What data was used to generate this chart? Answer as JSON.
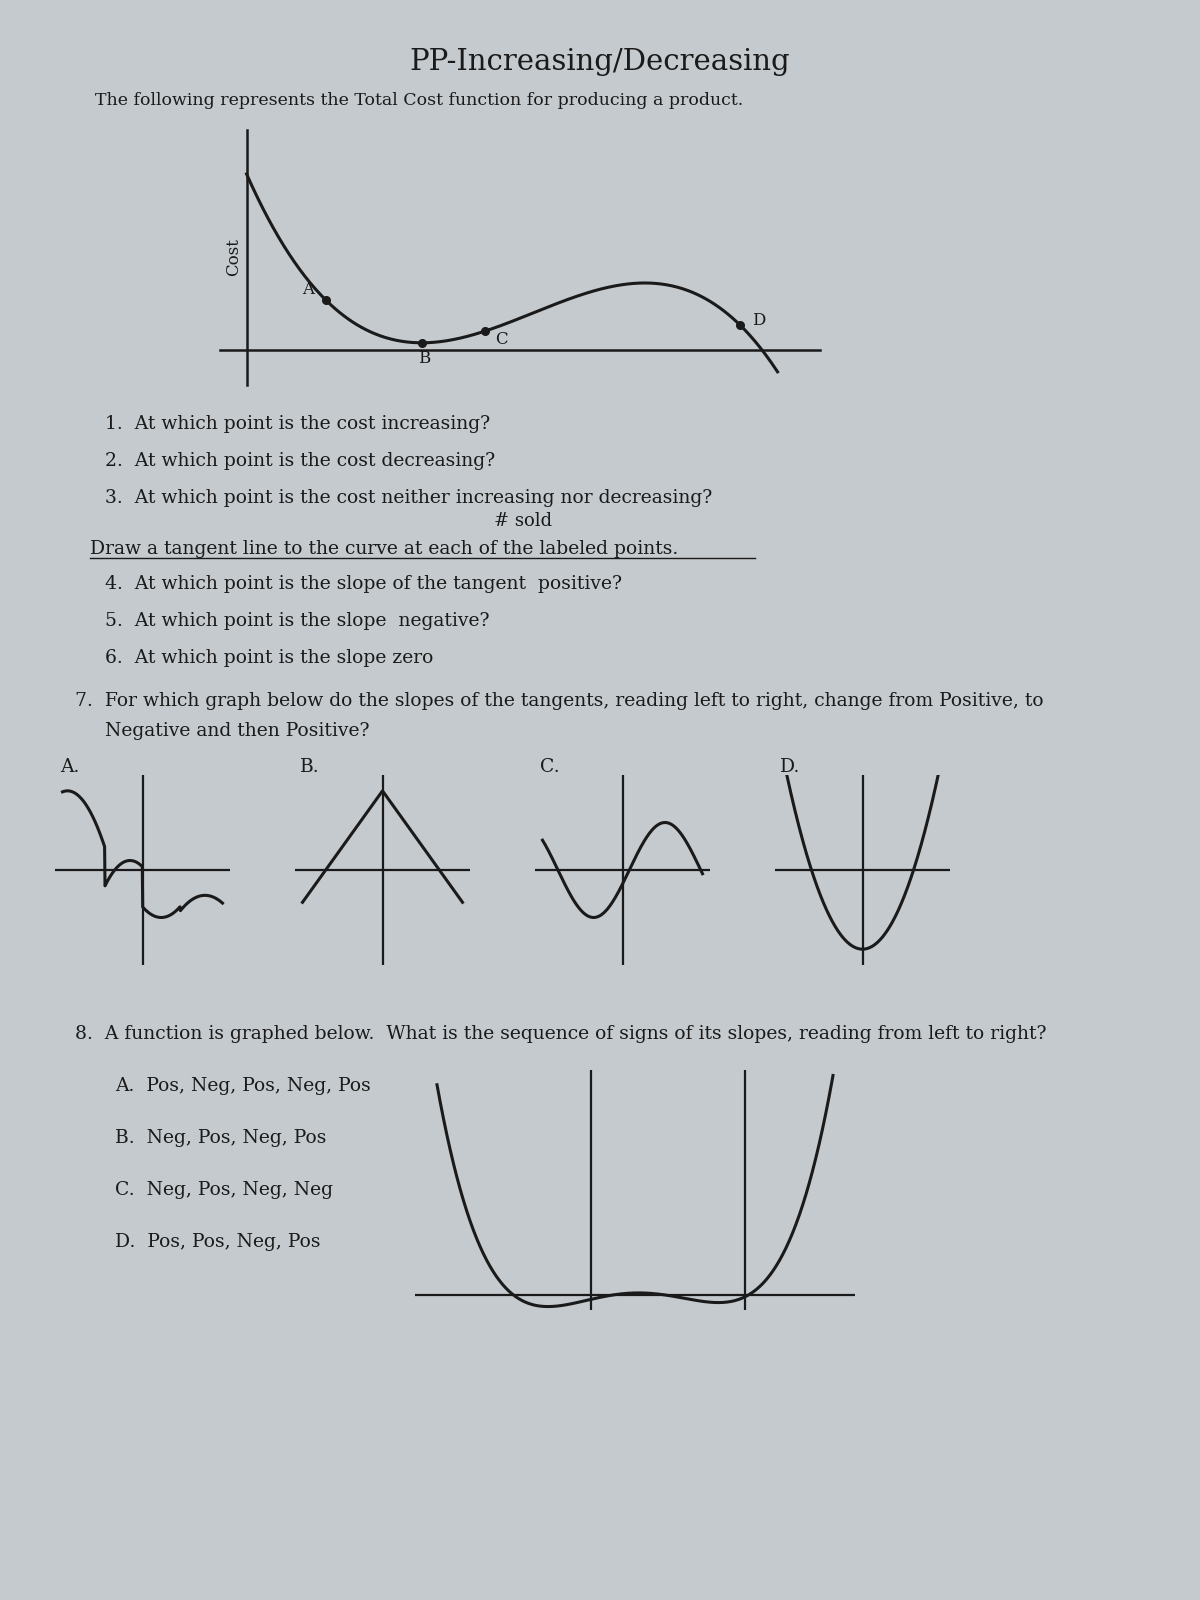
{
  "title": "PP-Increasing/Decreasing",
  "subtitle": "The following represents the Total Cost function for producing a product.",
  "bg_color": "#c5cace",
  "text_color": "#1a1a1a",
  "curve_color": "#1a1a1a",
  "axis_color": "#1a1a1a",
  "q1": "1.  At which point is the cost increasing?",
  "q2": "2.  At which point is the cost decreasing?",
  "q3": "3.  At which point is the cost neither increasing nor decreasing?",
  "draw_tangent": "Draw a tangent line to the curve at each of the labeled points.",
  "q4": "4.  At which point is the slope of the tangent  positive?",
  "q5": "5.  At which point is the slope  negative?",
  "q6": "6.  At which point is the slope zero",
  "q7": "7.  For which graph below do the slopes of the tangents, reading left to right, change from Positive, to",
  "q7b": "     Negative and then Positive?",
  "q8": "8.  A function is graphed below.  What is the sequence of signs of its slopes, reading from left to right?",
  "q8A": "A.  Pos, Neg, Pos, Neg, Pos",
  "q8B": "B.  Neg, Pos, Neg, Pos",
  "q8C": "C.  Neg, Pos, Neg, Neg",
  "q8D": "D.  Pos, Pos, Neg, Pos",
  "graph_labels": [
    "A.",
    "B.",
    "C.",
    "D."
  ]
}
